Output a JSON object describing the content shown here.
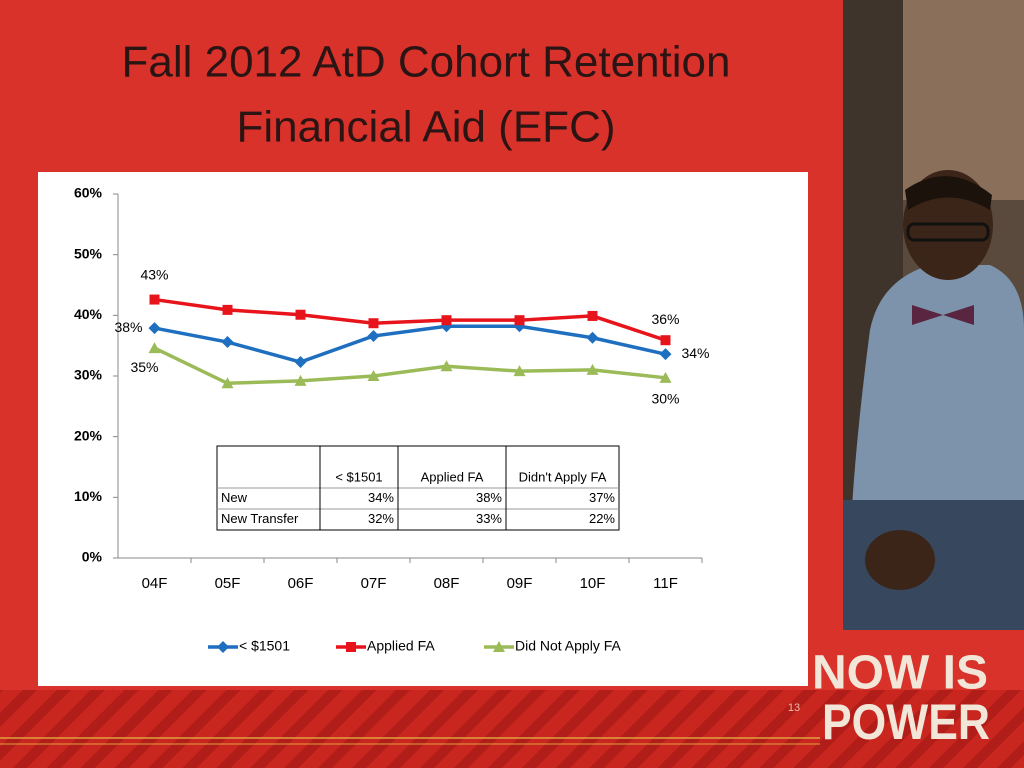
{
  "slide": {
    "title": [
      "Fall 2012 AtD Cohort Retention",
      "Financial Aid (EFC)"
    ],
    "page_number": "13",
    "logo": [
      "NOW IS",
      "POWER"
    ]
  },
  "chart_data": {
    "type": "line",
    "categories": [
      "04F",
      "05F",
      "06F",
      "07F",
      "08F",
      "09F",
      "10F",
      "11F"
    ],
    "series": [
      {
        "name": "< $1501",
        "color": "#1f6fc0",
        "marker": "diamond",
        "values": [
          37.9,
          35.6,
          32.3,
          36.6,
          38.2,
          38.2,
          36.3,
          33.6
        ],
        "value_labels": [
          "38%",
          null,
          null,
          null,
          null,
          null,
          null,
          "34%"
        ]
      },
      {
        "name": "Applied FA",
        "color": "#e8141b",
        "marker": "square",
        "values": [
          42.6,
          40.9,
          40.1,
          38.7,
          39.2,
          39.2,
          39.9,
          35.9
        ],
        "value_labels": [
          "43%",
          null,
          null,
          null,
          null,
          null,
          null,
          "36%"
        ]
      },
      {
        "name": "Did Not Apply FA",
        "color": "#9bbb59",
        "marker": "triangle",
        "values": [
          34.6,
          28.8,
          29.2,
          30.0,
          31.6,
          30.8,
          31.0,
          29.7
        ],
        "value_labels": [
          "35%",
          null,
          null,
          null,
          null,
          null,
          null,
          "30%"
        ]
      }
    ],
    "ylim": [
      0,
      60
    ],
    "yticks": [
      {
        "value": 0,
        "label": "0%"
      },
      {
        "value": 10,
        "label": "10%"
      },
      {
        "value": 20,
        "label": "20%"
      },
      {
        "value": 30,
        "label": "30%"
      },
      {
        "value": 40,
        "label": "40%"
      },
      {
        "value": 50,
        "label": "50%"
      },
      {
        "value": 60,
        "label": "60%"
      }
    ],
    "grid": false,
    "legend": "bottom"
  },
  "table": {
    "columns": [
      "< $1501",
      "Applied FA",
      "Didn't Apply FA"
    ],
    "rows": [
      {
        "label": "New",
        "values": [
          "34%",
          "38%",
          "37%"
        ]
      },
      {
        "label": "New Transfer",
        "values": [
          "32%",
          "33%",
          "22%"
        ]
      }
    ]
  }
}
